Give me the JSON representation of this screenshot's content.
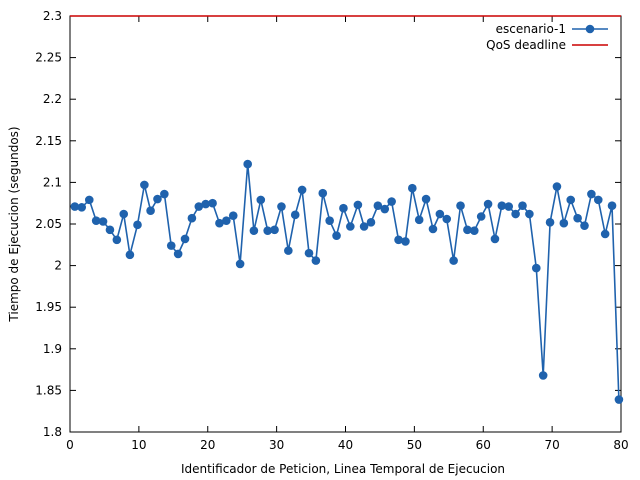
{
  "chart_data": {
    "type": "line",
    "title": "",
    "xlabel": "Identificador de Peticion, Linea Temporal de Ejecucion",
    "ylabel": "Tiempo de Ejecucion (segundos)",
    "xlim": [
      0,
      80
    ],
    "ylim": [
      1.8,
      2.3
    ],
    "x_ticks": [
      0,
      10,
      20,
      30,
      40,
      50,
      60,
      70,
      80
    ],
    "y_ticks": [
      1.8,
      1.85,
      1.9,
      1.95,
      2,
      2.05,
      2.1,
      2.15,
      2.2,
      2.25,
      2.3
    ],
    "x_tick_labels": [
      "0",
      "10",
      "20",
      "30",
      "40",
      "50",
      "60",
      "70",
      "80"
    ],
    "y_tick_labels": [
      "1.8",
      "1.85",
      "1.9",
      "1.95",
      "2",
      "2.05",
      "2.1",
      "2.15",
      "2.2",
      "2.25",
      "2.3"
    ],
    "grid": false,
    "legend_position": "top-right",
    "series": [
      {
        "name": "escenario-1",
        "color": "#1f62ad",
        "marker": "circle",
        "points": [
          [
            0.7,
            2.071
          ],
          [
            1.7,
            2.07
          ],
          [
            2.8,
            2.079
          ],
          [
            3.8,
            2.054
          ],
          [
            4.8,
            2.053
          ],
          [
            5.8,
            2.043
          ],
          [
            6.8,
            2.031
          ],
          [
            7.8,
            2.062
          ],
          [
            8.7,
            2.013
          ],
          [
            9.8,
            2.049
          ],
          [
            10.8,
            2.097
          ],
          [
            11.7,
            2.066
          ],
          [
            12.7,
            2.08
          ],
          [
            13.7,
            2.086
          ],
          [
            14.7,
            2.024
          ],
          [
            15.7,
            2.014
          ],
          [
            16.7,
            2.032
          ],
          [
            17.7,
            2.057
          ],
          [
            18.7,
            2.071
          ],
          [
            19.7,
            2.074
          ],
          [
            20.7,
            2.075
          ],
          [
            21.7,
            2.051
          ],
          [
            22.7,
            2.054
          ],
          [
            23.7,
            2.06
          ],
          [
            24.7,
            2.002
          ],
          [
            25.8,
            2.122
          ],
          [
            26.7,
            2.042
          ],
          [
            27.7,
            2.079
          ],
          [
            28.7,
            2.042
          ],
          [
            29.7,
            2.043
          ],
          [
            30.7,
            2.071
          ],
          [
            31.7,
            2.018
          ],
          [
            32.7,
            2.061
          ],
          [
            33.7,
            2.091
          ],
          [
            34.7,
            2.015
          ],
          [
            35.7,
            2.006
          ],
          [
            36.7,
            2.087
          ],
          [
            37.7,
            2.054
          ],
          [
            38.7,
            2.036
          ],
          [
            39.7,
            2.069
          ],
          [
            40.7,
            2.047
          ],
          [
            41.8,
            2.073
          ],
          [
            42.7,
            2.047
          ],
          [
            43.7,
            2.052
          ],
          [
            44.7,
            2.072
          ],
          [
            45.7,
            2.068
          ],
          [
            46.7,
            2.077
          ],
          [
            47.7,
            2.031
          ],
          [
            48.7,
            2.029
          ],
          [
            49.7,
            2.093
          ],
          [
            50.7,
            2.055
          ],
          [
            51.7,
            2.08
          ],
          [
            52.7,
            2.044
          ],
          [
            53.7,
            2.062
          ],
          [
            54.7,
            2.056
          ],
          [
            55.7,
            2.006
          ],
          [
            56.7,
            2.072
          ],
          [
            57.7,
            2.043
          ],
          [
            58.7,
            2.042
          ],
          [
            59.7,
            2.059
          ],
          [
            60.7,
            2.074
          ],
          [
            61.7,
            2.032
          ],
          [
            62.7,
            2.072
          ],
          [
            63.7,
            2.071
          ],
          [
            64.7,
            2.062
          ],
          [
            65.7,
            2.072
          ],
          [
            66.7,
            2.062
          ],
          [
            67.7,
            1.997
          ],
          [
            68.7,
            1.868
          ],
          [
            69.7,
            2.052
          ],
          [
            70.7,
            2.095
          ],
          [
            71.7,
            2.051
          ],
          [
            72.7,
            2.079
          ],
          [
            73.7,
            2.057
          ],
          [
            74.7,
            2.048
          ],
          [
            75.7,
            2.086
          ],
          [
            76.7,
            2.079
          ],
          [
            77.7,
            2.038
          ],
          [
            78.7,
            2.072
          ],
          [
            79.7,
            1.839
          ]
        ]
      },
      {
        "name": "QoS deadline",
        "color": "#cc0000",
        "marker": "none",
        "points": [
          [
            0,
            2.3
          ],
          [
            80,
            2.3
          ]
        ]
      }
    ]
  }
}
